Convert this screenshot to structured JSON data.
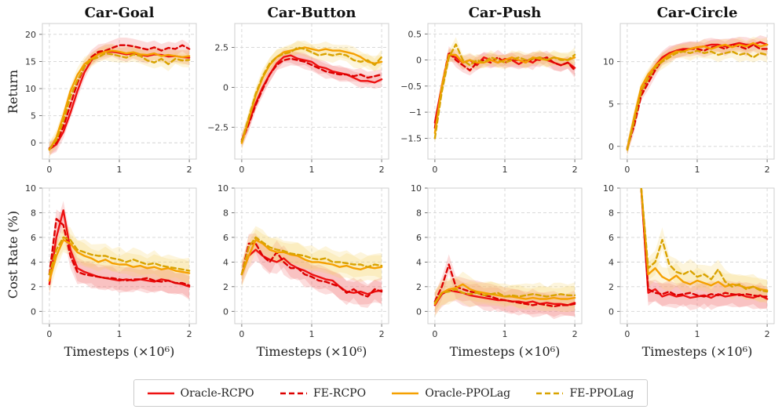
{
  "chart_data": {
    "type": "line",
    "layout": "2x4 grid",
    "legend": {
      "position": "bottom-center",
      "entries": [
        {
          "name": "Oracle-RCPO",
          "color": "#ee1111",
          "style": "solid"
        },
        {
          "name": "FE-RCPO",
          "color": "#dd0000",
          "style": "dashed"
        },
        {
          "name": "Oracle-PPOLag",
          "color": "#f5a000",
          "style": "solid"
        },
        {
          "name": "FE-PPOLag",
          "color": "#d9a300",
          "style": "dashed"
        }
      ]
    },
    "xlabel": "Timesteps (×10⁶)",
    "row_labels": [
      "Return",
      "Cost Rate (%)"
    ],
    "titles": [
      "Car-Goal",
      "Car-Button",
      "Car-Push",
      "Car-Circle"
    ],
    "x": [
      0,
      0.1,
      0.2,
      0.3,
      0.4,
      0.5,
      0.6,
      0.7,
      0.8,
      0.9,
      1.0,
      1.1,
      1.2,
      1.3,
      1.4,
      1.5,
      1.6,
      1.7,
      1.8,
      1.9,
      2.0
    ],
    "xticks": [
      0,
      1,
      2
    ],
    "xlim": [
      -0.1,
      2.1
    ],
    "panels": [
      {
        "row": 0,
        "col": 0,
        "title": "Car-Goal",
        "ylim": [
          -3,
          22
        ],
        "yticks": [
          0,
          5,
          10,
          15,
          20
        ],
        "series": [
          {
            "name": "Oracle-RCPO",
            "values": [
              -1.2,
              -0.3,
              2.0,
              5.5,
              9.5,
              13.0,
              15.2,
              16.5,
              16.8,
              16.8,
              16.6,
              16.3,
              16.5,
              16.2,
              16.0,
              16.3,
              16.2,
              15.9,
              16.0,
              15.8,
              15.7
            ]
          },
          {
            "name": "FE-RCPO",
            "values": [
              -1.0,
              0.0,
              3.0,
              7.0,
              11.0,
              14.0,
              15.8,
              16.8,
              17.0,
              17.5,
              18.0,
              18.0,
              17.8,
              17.5,
              17.2,
              17.6,
              17.0,
              17.5,
              17.3,
              18.0,
              17.3
            ]
          },
          {
            "name": "Oracle-PPOLag",
            "values": [
              -1.3,
              1.0,
              5.0,
              9.5,
              12.5,
              14.5,
              15.5,
              16.3,
              16.8,
              17.0,
              16.8,
              16.5,
              16.7,
              16.3,
              16.2,
              16.5,
              16.0,
              16.2,
              16.0,
              15.8,
              16.0
            ]
          },
          {
            "name": "FE-PPOLag",
            "values": [
              -1.2,
              0.5,
              4.0,
              8.5,
              11.5,
              14.0,
              15.3,
              15.8,
              16.5,
              16.3,
              16.0,
              15.7,
              16.3,
              16.0,
              15.2,
              14.8,
              15.5,
              14.5,
              15.5,
              15.2,
              15.3
            ]
          }
        ]
      },
      {
        "row": 0,
        "col": 1,
        "title": "Car-Button",
        "ylim": [
          -4.5,
          4.0
        ],
        "yticks": [
          -2.5,
          0.0,
          2.5
        ],
        "series": [
          {
            "name": "Oracle-RCPO",
            "values": [
              -3.3,
              -2.2,
              -1.0,
              0.0,
              0.8,
              1.5,
              1.9,
              2.0,
              1.8,
              1.7,
              1.6,
              1.3,
              1.2,
              1.0,
              0.9,
              0.8,
              0.6,
              0.4,
              0.4,
              0.3,
              0.5
            ]
          },
          {
            "name": "FE-RCPO",
            "values": [
              -3.4,
              -2.3,
              -1.1,
              -0.1,
              0.8,
              1.4,
              1.7,
              1.8,
              1.7,
              1.6,
              1.4,
              1.2,
              1.0,
              0.9,
              0.8,
              0.8,
              0.7,
              0.8,
              0.6,
              0.7,
              0.8
            ]
          },
          {
            "name": "Oracle-PPOLag",
            "values": [
              -3.5,
              -2.0,
              -0.5,
              0.6,
              1.4,
              1.9,
              2.2,
              2.3,
              2.4,
              2.5,
              2.4,
              2.3,
              2.4,
              2.3,
              2.3,
              2.2,
              2.1,
              1.9,
              1.6,
              1.5,
              1.6
            ]
          },
          {
            "name": "FE-PPOLag",
            "values": [
              -3.4,
              -1.9,
              -0.4,
              0.7,
              1.5,
              1.9,
              2.1,
              2.2,
              2.5,
              2.4,
              2.2,
              2.0,
              2.1,
              2.0,
              2.1,
              2.0,
              1.7,
              1.6,
              1.7,
              1.4,
              1.9
            ]
          }
        ]
      },
      {
        "row": 0,
        "col": 2,
        "title": "Car-Push",
        "ylim": [
          -1.9,
          0.7
        ],
        "yticks": [
          -1.5,
          -1.0,
          -0.5,
          0.0,
          0.5
        ],
        "series": [
          {
            "name": "Oracle-RCPO",
            "values": [
              -1.2,
              -0.5,
              0.1,
              0.05,
              -0.05,
              0.0,
              -0.1,
              0.05,
              0.0,
              -0.05,
              0.02,
              0.0,
              -0.08,
              0.0,
              -0.05,
              0.05,
              0.0,
              -0.05,
              -0.1,
              -0.05,
              -0.15
            ]
          },
          {
            "name": "FE-RCPO",
            "values": [
              -1.3,
              -0.5,
              0.15,
              0.0,
              -0.1,
              -0.2,
              -0.05,
              0.0,
              -0.05,
              0.05,
              -0.05,
              0.0,
              0.0,
              -0.05,
              0.02,
              0.0,
              0.05,
              -0.05,
              -0.1,
              -0.05,
              -0.2
            ]
          },
          {
            "name": "Oracle-PPOLag",
            "values": [
              -1.4,
              -0.5,
              0.1,
              0.1,
              -0.05,
              0.0,
              -0.05,
              -0.05,
              0.0,
              -0.05,
              0.0,
              0.05,
              0.0,
              -0.05,
              0.05,
              0.02,
              0.0,
              0.05,
              0.02,
              0.0,
              0.05
            ]
          },
          {
            "name": "FE-PPOLag",
            "values": [
              -1.5,
              -0.6,
              0.05,
              0.3,
              0.0,
              -0.1,
              0.0,
              -0.05,
              0.05,
              0.0,
              -0.05,
              0.0,
              0.05,
              0.0,
              0.02,
              0.05,
              0.0,
              0.05,
              0.0,
              0.0,
              0.1
            ]
          }
        ]
      },
      {
        "row": 0,
        "col": 3,
        "title": "Car-Circle",
        "ylim": [
          -1.5,
          14.5
        ],
        "yticks": [
          0,
          5,
          10
        ],
        "series": [
          {
            "name": "Oracle-RCPO",
            "values": [
              -0.3,
              3.0,
              6.5,
              8.0,
              9.5,
              10.5,
              11.0,
              11.3,
              11.5,
              11.5,
              11.7,
              11.8,
              12.0,
              12.0,
              11.8,
              12.0,
              12.2,
              12.0,
              12.0,
              12.3,
              12.0
            ]
          },
          {
            "name": "FE-RCPO",
            "values": [
              -0.2,
              2.5,
              6.0,
              7.5,
              9.0,
              10.2,
              10.8,
              11.2,
              11.3,
              11.5,
              11.5,
              11.3,
              11.7,
              11.8,
              11.5,
              12.0,
              11.8,
              11.5,
              12.0,
              11.5,
              11.5
            ]
          },
          {
            "name": "Oracle-PPOLag",
            "values": [
              -0.3,
              3.5,
              7.0,
              8.5,
              9.5,
              10.2,
              10.8,
              11.2,
              11.2,
              11.5,
              11.7,
              11.8,
              11.5,
              11.8,
              12.0,
              11.7,
              12.0,
              11.8,
              12.2,
              11.8,
              12.0
            ]
          },
          {
            "name": "FE-PPOLag",
            "values": [
              -0.4,
              3.0,
              6.5,
              8.0,
              9.3,
              10.0,
              10.5,
              11.0,
              11.2,
              11.0,
              11.3,
              11.0,
              11.2,
              10.8,
              11.0,
              11.2,
              10.8,
              11.0,
              10.5,
              11.0,
              10.8
            ]
          }
        ]
      },
      {
        "row": 1,
        "col": 0,
        "title": "",
        "ylim": [
          -1,
          10
        ],
        "yticks": [
          0,
          2,
          4,
          6,
          8,
          10
        ],
        "series": [
          {
            "name": "Oracle-RCPO",
            "values": [
              2.2,
              6.0,
              8.2,
              5.0,
              3.5,
              3.2,
              3.0,
              2.8,
              2.7,
              2.6,
              2.5,
              2.6,
              2.5,
              2.6,
              2.5,
              2.4,
              2.6,
              2.5,
              2.3,
              2.2,
              2.0
            ]
          },
          {
            "name": "FE-RCPO",
            "values": [
              3.0,
              7.5,
              7.0,
              4.5,
              3.2,
              3.0,
              2.9,
              2.8,
              2.7,
              2.7,
              2.6,
              2.5,
              2.6,
              2.6,
              2.7,
              2.5,
              2.4,
              2.5,
              2.3,
              2.3,
              2.1
            ]
          },
          {
            "name": "Oracle-PPOLag",
            "values": [
              2.5,
              4.5,
              5.8,
              5.5,
              4.8,
              4.5,
              4.3,
              4.0,
              4.2,
              3.9,
              3.8,
              3.8,
              3.6,
              3.7,
              3.5,
              3.6,
              3.4,
              3.5,
              3.3,
              3.2,
              3.1
            ]
          },
          {
            "name": "FE-PPOLag",
            "values": [
              3.0,
              5.0,
              6.0,
              5.8,
              5.0,
              4.8,
              4.6,
              4.5,
              4.5,
              4.3,
              4.2,
              4.0,
              4.2,
              4.0,
              3.8,
              3.9,
              3.7,
              3.6,
              3.5,
              3.4,
              3.3
            ]
          }
        ]
      },
      {
        "row": 1,
        "col": 1,
        "title": "",
        "ylim": [
          -1,
          10
        ],
        "yticks": [
          0,
          2,
          4,
          6,
          8,
          10
        ],
        "series": [
          {
            "name": "Oracle-RCPO",
            "values": [
              3.0,
              4.5,
              5.0,
              4.5,
              4.2,
              4.0,
              4.3,
              3.8,
              3.5,
              3.3,
              3.0,
              2.8,
              2.6,
              2.5,
              2.0,
              1.6,
              1.5,
              1.6,
              1.4,
              1.6,
              1.7
            ]
          },
          {
            "name": "FE-RCPO",
            "values": [
              3.0,
              5.5,
              5.5,
              4.5,
              4.0,
              4.8,
              4.0,
              3.5,
              3.5,
              3.0,
              2.8,
              2.5,
              2.4,
              2.2,
              2.0,
              1.5,
              1.8,
              1.4,
              1.2,
              1.8,
              1.6
            ]
          },
          {
            "name": "Oracle-PPOLag",
            "values": [
              3.0,
              4.5,
              5.8,
              5.5,
              5.0,
              4.8,
              4.8,
              4.6,
              4.5,
              4.2,
              4.0,
              4.0,
              3.9,
              3.8,
              3.6,
              3.7,
              3.5,
              3.4,
              3.6,
              3.5,
              3.6
            ]
          },
          {
            "name": "FE-PPOLag",
            "values": [
              3.0,
              5.2,
              6.0,
              5.6,
              5.2,
              5.0,
              4.9,
              4.7,
              4.6,
              4.5,
              4.3,
              4.2,
              4.3,
              4.0,
              4.0,
              3.9,
              3.8,
              3.8,
              3.6,
              3.8,
              3.7
            ]
          }
        ]
      },
      {
        "row": 1,
        "col": 2,
        "title": "",
        "ylim": [
          -1,
          10
        ],
        "yticks": [
          0,
          2,
          4,
          6,
          8,
          10
        ],
        "series": [
          {
            "name": "Oracle-RCPO",
            "values": [
              0.5,
              1.4,
              1.7,
              1.6,
              1.5,
              1.3,
              1.2,
              1.1,
              1.0,
              0.9,
              0.9,
              0.8,
              0.8,
              0.7,
              0.8,
              0.6,
              0.7,
              0.6,
              0.6,
              0.5,
              0.7
            ]
          },
          {
            "name": "FE-RCPO",
            "values": [
              0.8,
              2.0,
              3.8,
              2.0,
              1.8,
              1.6,
              1.5,
              1.3,
              1.2,
              1.0,
              0.9,
              0.8,
              0.7,
              0.6,
              0.5,
              0.6,
              0.5,
              0.4,
              0.5,
              0.5,
              0.6
            ]
          },
          {
            "name": "Oracle-PPOLag",
            "values": [
              0.6,
              1.5,
              1.8,
              1.9,
              2.2,
              1.8,
              1.6,
              1.5,
              1.4,
              1.3,
              1.2,
              1.2,
              1.1,
              1.0,
              1.1,
              1.0,
              1.0,
              1.1,
              1.0,
              1.0,
              1.1
            ]
          },
          {
            "name": "FE-PPOLag",
            "values": [
              0.7,
              1.5,
              1.6,
              1.8,
              1.5,
              1.4,
              1.5,
              1.3,
              1.4,
              1.5,
              1.2,
              1.3,
              1.2,
              1.3,
              1.4,
              1.3,
              1.2,
              1.3,
              1.4,
              1.3,
              1.3
            ]
          }
        ]
      },
      {
        "row": 1,
        "col": 3,
        "title": "",
        "ylim": [
          -1,
          10
        ],
        "yticks": [
          0,
          2,
          4,
          6,
          8,
          10
        ],
        "series": [
          {
            "name": "Oracle-RCPO",
            "values": [
              null,
              null,
              10.0,
              1.5,
              1.8,
              1.2,
              1.4,
              1.2,
              1.3,
              1.1,
              1.2,
              1.3,
              1.1,
              1.4,
              1.2,
              1.3,
              1.4,
              1.2,
              1.1,
              1.3,
              1.0
            ]
          },
          {
            "name": "FE-RCPO",
            "values": [
              null,
              null,
              10.0,
              1.8,
              1.5,
              1.4,
              1.6,
              1.3,
              1.4,
              1.5,
              1.3,
              1.2,
              1.4,
              1.3,
              1.5,
              1.4,
              1.3,
              1.4,
              1.3,
              1.2,
              1.2
            ]
          },
          {
            "name": "Oracle-PPOLag",
            "values": [
              null,
              null,
              10.0,
              3.0,
              3.5,
              2.8,
              2.5,
              2.9,
              2.4,
              2.2,
              2.5,
              2.3,
              2.1,
              2.4,
              2.0,
              2.2,
              2.1,
              1.9,
              2.0,
              1.8,
              1.7
            ]
          },
          {
            "name": "FE-PPOLag",
            "values": [
              null,
              null,
              10.0,
              3.5,
              4.0,
              5.8,
              3.8,
              3.2,
              3.0,
              3.3,
              2.8,
              3.0,
              2.6,
              3.4,
              2.4,
              2.0,
              2.2,
              1.8,
              2.0,
              1.7,
              1.6
            ]
          }
        ]
      }
    ]
  }
}
